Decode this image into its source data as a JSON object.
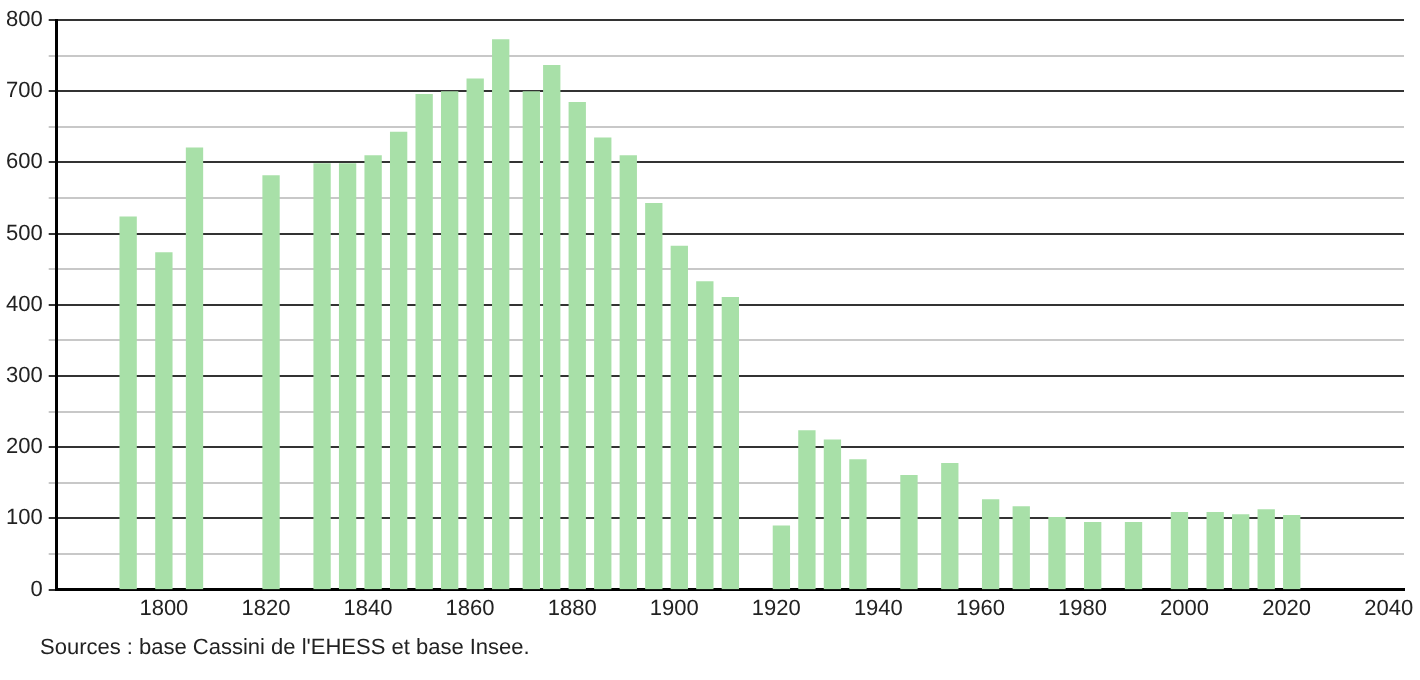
{
  "chart_data": {
    "type": "bar",
    "x": [
      1793,
      1800,
      1806,
      1821,
      1831,
      1836,
      1841,
      1846,
      1851,
      1856,
      1861,
      1866,
      1872,
      1876,
      1881,
      1886,
      1891,
      1896,
      1901,
      1906,
      1911,
      1921,
      1926,
      1931,
      1936,
      1946,
      1954,
      1962,
      1968,
      1975,
      1982,
      1990,
      1999,
      2006,
      2011,
      2016,
      2021
    ],
    "values": [
      523,
      473,
      620,
      581,
      598,
      598,
      609,
      642,
      695,
      699,
      717,
      772,
      699,
      736,
      684,
      634,
      609,
      542,
      482,
      432,
      410,
      89,
      223,
      210,
      182,
      160,
      177,
      126,
      116,
      101,
      94,
      94,
      108,
      108,
      105,
      112,
      104
    ],
    "color": "#a8e0a8",
    "xlim": [
      1779,
      2043
    ],
    "xticks": [
      1800,
      1820,
      1840,
      1860,
      1880,
      1900,
      1920,
      1940,
      1960,
      1980,
      2000,
      2020,
      2040
    ],
    "ylim": [
      0,
      800
    ],
    "yticks": [
      0,
      {
        "value": 50,
        "label": null
      },
      100,
      {
        "value": 150,
        "label": null
      },
      200,
      {
        "value": 250,
        "label": null
      },
      300,
      {
        "value": 350,
        "label": null
      },
      400,
      {
        "value": 450,
        "label": null
      },
      500,
      {
        "value": 550,
        "label": null
      },
      600,
      {
        "value": 650,
        "label": null
      },
      700,
      {
        "value": 750,
        "label": null
      },
      800
    ],
    "grid": "y",
    "legend": false,
    "annotations": [
      "Sources : base Cassini de l'EHESS et base Insee."
    ]
  }
}
